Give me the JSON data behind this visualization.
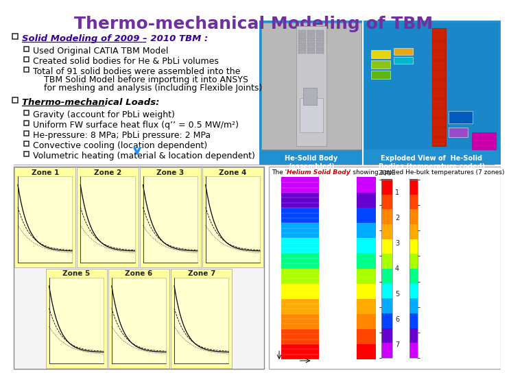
{
  "title": "Thermo-mechanical Modeling of TBM",
  "title_color": "#7030A0",
  "title_fontsize": 18,
  "bg_color": "#FFFFFF",
  "section1_header": "Solid Modeling of 2009 – 2010 TBM :",
  "section1_bullets": [
    "Used Original CATIA TBM Model",
    "Created solid bodies for He & PbLi volumes",
    "Total of 91 solid bodies were assembled into the\n    TBM Solid Model before importing it into ANSYS\n    for meshing and analysis (including Flexible Joints)"
  ],
  "section2_header": "Thermo-mechanical Loads:",
  "section2_bullets": [
    "Gravity (account for PbLi weight)",
    "Uniform FW surface heat flux (q’’ = 0.5 MW/m²)",
    "He-pressure: 8 MPa; PbLi pressure: 2 MPa",
    "Convective cooling (location dependent)",
    "Volumetric heating (material & location dependent)"
  ],
  "img1_label": "He-Solid Body\n(assembled)",
  "img2_label": "Exploded View of  He-Solid\nBodies (temperature coded)",
  "bottom_label": "The ‘Helium Solid Body’ showing applied He-bulk temperatures (7 zones)",
  "img_bg": "#1E90FF",
  "zone_labels": [
    "Zone 1",
    "Zone 2",
    "Zone 3",
    "Zone 4",
    "Zone 5",
    "Zone 6",
    "Zone 7"
  ],
  "zone_bg": "#FFFFA0",
  "arrow_color": "#1E90FF",
  "grad_colors": [
    "#FF0000",
    "#FF4400",
    "#FF8800",
    "#FFAA00",
    "#FFFF00",
    "#AAFF00",
    "#00FF88",
    "#00FFFF",
    "#00AAFF",
    "#0044FF",
    "#6600CC",
    "#CC00FF"
  ],
  "zone_nums": [
    "7",
    "6",
    "5",
    "4",
    "3",
    "2",
    "1"
  ]
}
